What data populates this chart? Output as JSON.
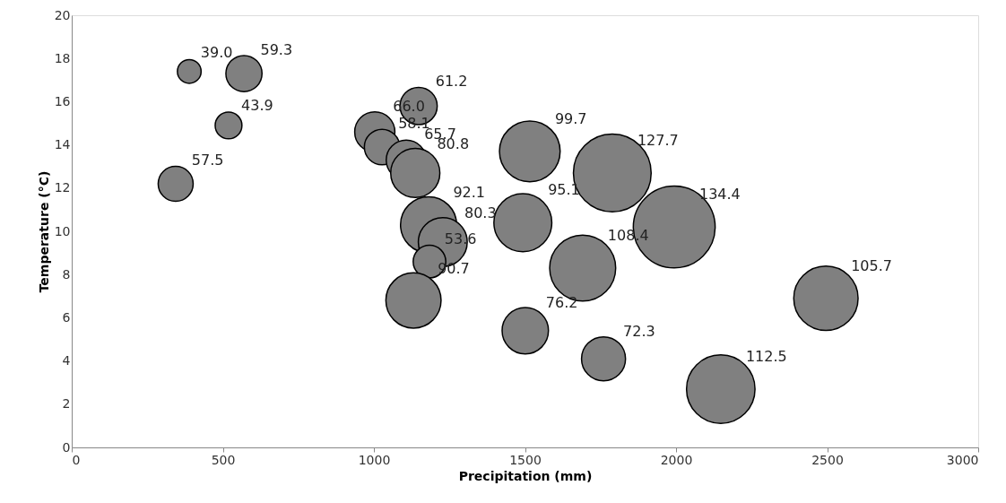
{
  "chart_data": {
    "type": "bubble",
    "xlabel": "Precipitation (mm)",
    "ylabel": "Temperature (°C)",
    "x": [
      389,
      570,
      519,
      344,
      1148,
      1003,
      1027,
      1107,
      1137,
      1181,
      1228,
      1184,
      1131,
      1516,
      1493,
      1789,
      1691,
      1994,
      1501,
      1760,
      2496,
      2148
    ],
    "series": [
      {
        "color": "#808080",
        "values": [
          17.4,
          17.3,
          14.9,
          12.2,
          15.8,
          14.6,
          13.9,
          13.3,
          12.7,
          10.3,
          9.5,
          8.6,
          6.8,
          13.7,
          10.4,
          12.7,
          8.3,
          10.2,
          5.4,
          4.1,
          6.9,
          2.7
        ],
        "sizes": [
          0.084,
          0.195,
          0.107,
          0.183,
          0.207,
          0.241,
          0.187,
          0.239,
          0.361,
          0.47,
          0.357,
          0.159,
          0.455,
          0.55,
          0.501,
          0.903,
          0.651,
          1,
          0.321,
          0.289,
          0.618,
          0.701
        ]
      }
    ],
    "annotations": [
      {
        "text": "39.0",
        "x": 389,
        "y": 17.4
      },
      {
        "text": "59.3",
        "x": 570,
        "y": 17.3
      },
      {
        "text": "43.9",
        "x": 519,
        "y": 14.9
      },
      {
        "text": "57.5",
        "x": 344,
        "y": 12.2
      },
      {
        "text": "61.2",
        "x": 1148,
        "y": 15.8
      },
      {
        "text": "66.0",
        "x": 1003,
        "y": 14.6
      },
      {
        "text": "58.1",
        "x": 1027,
        "y": 13.9
      },
      {
        "text": "65.7",
        "x": 1107,
        "y": 13.3
      },
      {
        "text": "80.8",
        "x": 1137,
        "y": 12.7
      },
      {
        "text": "92.1",
        "x": 1181,
        "y": 10.3
      },
      {
        "text": "80.3",
        "x": 1228,
        "y": 9.5
      },
      {
        "text": "53.6",
        "x": 1184,
        "y": 8.6
      },
      {
        "text": "90.7",
        "x": 1131,
        "y": 6.8
      },
      {
        "text": "99.7",
        "x": 1516,
        "y": 13.7
      },
      {
        "text": "95.1",
        "x": 1493,
        "y": 10.4
      },
      {
        "text": "127.7",
        "x": 1789,
        "y": 12.7
      },
      {
        "text": "108.4",
        "x": 1691,
        "y": 8.3
      },
      {
        "text": "134.4",
        "x": 1994,
        "y": 10.2
      },
      {
        "text": "76.2",
        "x": 1501,
        "y": 5.4
      },
      {
        "text": "72.3",
        "x": 1760,
        "y": 4.1
      },
      {
        "text": "105.7",
        "x": 2496,
        "y": 6.9
      },
      {
        "text": "112.5",
        "x": 2148,
        "y": 2.7
      }
    ],
    "xlim": [
      0,
      3000
    ],
    "xticks": [
      0,
      500,
      {
        "value": 1000,
        "label": "1000"
      },
      {
        "value": 1500,
        "label": "1500"
      },
      {
        "value": 2000,
        "label": "2000"
      },
      {
        "value": 2500,
        "label": "2500"
      },
      {
        "value": 3000,
        "label": "3000"
      }
    ],
    "ylim": [
      0,
      20
    ],
    "yticks": [
      0,
      2,
      4,
      6,
      8,
      10,
      12,
      14,
      16,
      18,
      20
    ],
    "grid": false
  }
}
